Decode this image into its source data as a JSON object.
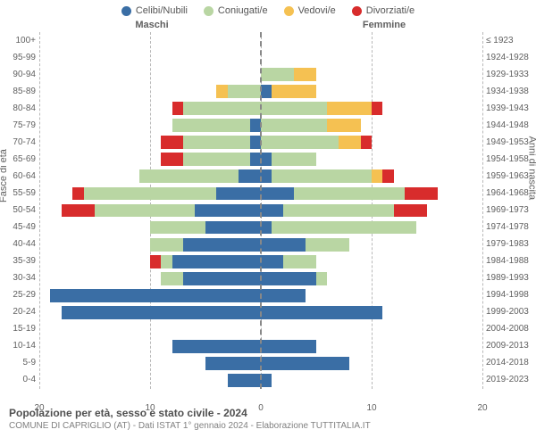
{
  "legend": [
    {
      "label": "Celibi/Nubili",
      "color": "#3a6ea5"
    },
    {
      "label": "Coniugati/e",
      "color": "#b9d6a3"
    },
    {
      "label": "Vedovi/e",
      "color": "#f5c152"
    },
    {
      "label": "Divorziati/e",
      "color": "#d82c2c"
    }
  ],
  "gender": {
    "left": "Maschi",
    "right": "Femmine"
  },
  "y_left_title": "Fasce di età",
  "y_right_title": "Anni di nascita",
  "age_labels": [
    "100+",
    "95-99",
    "90-94",
    "85-89",
    "80-84",
    "75-79",
    "70-74",
    "65-69",
    "60-64",
    "55-59",
    "50-54",
    "45-49",
    "40-44",
    "35-39",
    "30-34",
    "25-29",
    "20-24",
    "15-19",
    "10-14",
    "5-9",
    "0-4"
  ],
  "birth_labels": [
    "≤ 1923",
    "1924-1928",
    "1929-1933",
    "1934-1938",
    "1939-1943",
    "1944-1948",
    "1949-1953",
    "1954-1958",
    "1959-1963",
    "1964-1968",
    "1969-1973",
    "1974-1978",
    "1979-1983",
    "1984-1988",
    "1989-1993",
    "1994-1998",
    "1999-2003",
    "2004-2008",
    "2009-2013",
    "2014-2018",
    "2019-2023"
  ],
  "x_ticks": [
    20,
    10,
    0,
    10,
    20
  ],
  "x_max": 20,
  "colors": {
    "celibi": "#3a6ea5",
    "coniugati": "#b9d6a3",
    "vedovi": "#f5c152",
    "divorziati": "#d82c2c",
    "grid": "#b8b8b8",
    "center": "#888888",
    "bg": "#ffffff"
  },
  "rows": [
    {
      "male": {
        "cel": 0,
        "con": 0,
        "ved": 0,
        "div": 0
      },
      "female": {
        "cel": 0,
        "con": 0,
        "ved": 0,
        "div": 0
      }
    },
    {
      "male": {
        "cel": 0,
        "con": 0,
        "ved": 0,
        "div": 0
      },
      "female": {
        "cel": 0,
        "con": 0,
        "ved": 0,
        "div": 0
      }
    },
    {
      "male": {
        "cel": 0,
        "con": 0,
        "ved": 0,
        "div": 0
      },
      "female": {
        "cel": 0,
        "con": 3,
        "ved": 2,
        "div": 0
      }
    },
    {
      "male": {
        "cel": 0,
        "con": 3,
        "ved": 1,
        "div": 0
      },
      "female": {
        "cel": 1,
        "con": 0,
        "ved": 4,
        "div": 0
      }
    },
    {
      "male": {
        "cel": 0,
        "con": 7,
        "ved": 0,
        "div": 1
      },
      "female": {
        "cel": 0,
        "con": 6,
        "ved": 4,
        "div": 1
      }
    },
    {
      "male": {
        "cel": 1,
        "con": 7,
        "ved": 0,
        "div": 0
      },
      "female": {
        "cel": 0,
        "con": 6,
        "ved": 3,
        "div": 0
      }
    },
    {
      "male": {
        "cel": 1,
        "con": 6,
        "ved": 0,
        "div": 2
      },
      "female": {
        "cel": 0,
        "con": 7,
        "ved": 2,
        "div": 1
      }
    },
    {
      "male": {
        "cel": 1,
        "con": 6,
        "ved": 0,
        "div": 2
      },
      "female": {
        "cel": 1,
        "con": 4,
        "ved": 0,
        "div": 0
      }
    },
    {
      "male": {
        "cel": 2,
        "con": 9,
        "ved": 0,
        "div": 0
      },
      "female": {
        "cel": 1,
        "con": 9,
        "ved": 1,
        "div": 1
      }
    },
    {
      "male": {
        "cel": 4,
        "con": 12,
        "ved": 0,
        "div": 1
      },
      "female": {
        "cel": 3,
        "con": 10,
        "ved": 0,
        "div": 3
      }
    },
    {
      "male": {
        "cel": 6,
        "con": 9,
        "ved": 0,
        "div": 3
      },
      "female": {
        "cel": 2,
        "con": 10,
        "ved": 0,
        "div": 3
      }
    },
    {
      "male": {
        "cel": 5,
        "con": 5,
        "ved": 0,
        "div": 0
      },
      "female": {
        "cel": 1,
        "con": 13,
        "ved": 0,
        "div": 0
      }
    },
    {
      "male": {
        "cel": 7,
        "con": 3,
        "ved": 0,
        "div": 0
      },
      "female": {
        "cel": 4,
        "con": 4,
        "ved": 0,
        "div": 0
      }
    },
    {
      "male": {
        "cel": 8,
        "con": 1,
        "ved": 0,
        "div": 1
      },
      "female": {
        "cel": 2,
        "con": 3,
        "ved": 0,
        "div": 0
      }
    },
    {
      "male": {
        "cel": 7,
        "con": 2,
        "ved": 0,
        "div": 0
      },
      "female": {
        "cel": 5,
        "con": 1,
        "ved": 0,
        "div": 0
      }
    },
    {
      "male": {
        "cel": 19,
        "con": 0,
        "ved": 0,
        "div": 0
      },
      "female": {
        "cel": 4,
        "con": 0,
        "ved": 0,
        "div": 0
      }
    },
    {
      "male": {
        "cel": 18,
        "con": 0,
        "ved": 0,
        "div": 0
      },
      "female": {
        "cel": 11,
        "con": 0,
        "ved": 0,
        "div": 0
      }
    },
    {
      "male": {
        "cel": 0,
        "con": 0,
        "ved": 0,
        "div": 0
      },
      "female": {
        "cel": 0,
        "con": 0,
        "ved": 0,
        "div": 0
      }
    },
    {
      "male": {
        "cel": 8,
        "con": 0,
        "ved": 0,
        "div": 0
      },
      "female": {
        "cel": 5,
        "con": 0,
        "ved": 0,
        "div": 0
      }
    },
    {
      "male": {
        "cel": 5,
        "con": 0,
        "ved": 0,
        "div": 0
      },
      "female": {
        "cel": 8,
        "con": 0,
        "ved": 0,
        "div": 0
      }
    },
    {
      "male": {
        "cel": 3,
        "con": 0,
        "ved": 0,
        "div": 0
      },
      "female": {
        "cel": 1,
        "con": 0,
        "ved": 0,
        "div": 0
      }
    }
  ],
  "title": "Popolazione per età, sesso e stato civile - 2024",
  "subtitle": "COMUNE DI CAPRIGLIO (AT) - Dati ISTAT 1° gennaio 2024 - Elaborazione TUTTITALIA.IT"
}
